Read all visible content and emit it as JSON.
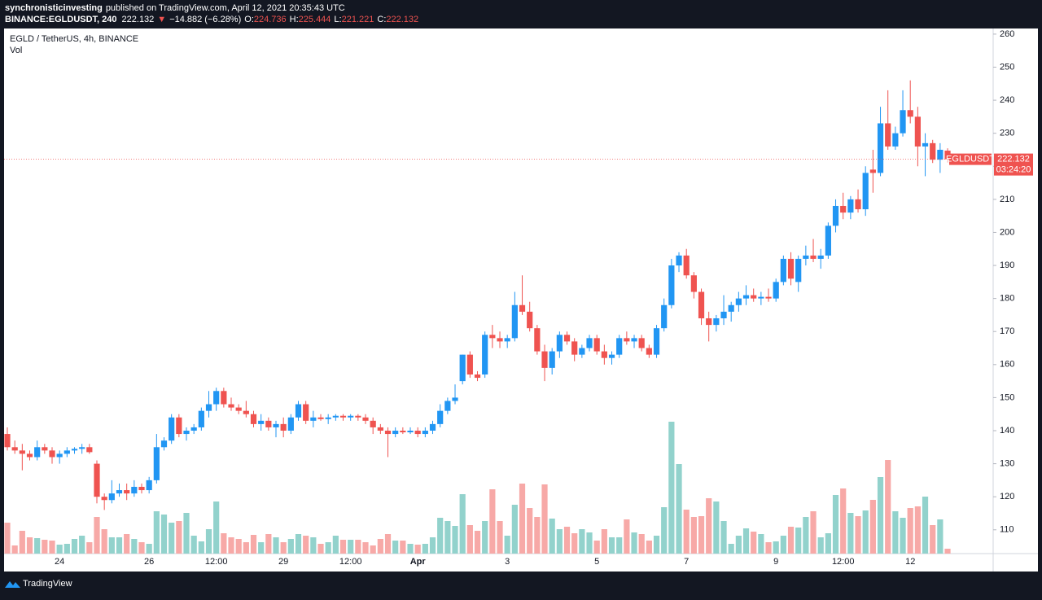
{
  "header": {
    "author": "synchronisticinvesting",
    "published": "published on TradingView.com, April 12, 2021 20:35:43 UTC",
    "symbol": "BINANCE:EGLDUSDT, 240",
    "price": "222.132",
    "arrow": "▼",
    "change": "−14.882 (−6.28%)",
    "ohlc": [
      {
        "label": "O:",
        "value": "224.736"
      },
      {
        "label": "H:",
        "value": "225.444"
      },
      {
        "label": "L:",
        "value": "221.221"
      },
      {
        "label": "C:",
        "value": "222.132"
      }
    ]
  },
  "footer": {
    "brand": "TradingView"
  },
  "chart_data": {
    "type": "candlestick",
    "title": "EGLD / TetherUS, 4h, BINANCE",
    "volume_label": "Vol",
    "symbol_label": "EGLDUSDT",
    "countdown": "03:24:20",
    "up_color": "#2196f3",
    "down_color": "#ef5350",
    "up_volume_color": "#92d2cc",
    "down_volume_color": "#f7a9a7",
    "ylim": [
      102.8,
      261.7
    ],
    "yticks": [
      110,
      120,
      130,
      140,
      150,
      160,
      170,
      180,
      190,
      200,
      210,
      220,
      230,
      240,
      250,
      260
    ],
    "volume_lim": [
      0,
      200
    ],
    "categories": [
      null,
      null,
      null,
      null,
      null,
      null,
      null,
      "24",
      null,
      null,
      null,
      null,
      null,
      null,
      null,
      null,
      null,
      null,
      null,
      "26",
      null,
      null,
      null,
      null,
      null,
      null,
      null,
      null,
      "12:00",
      null,
      null,
      null,
      null,
      null,
      null,
      null,
      null,
      "29",
      null,
      null,
      null,
      null,
      null,
      null,
      null,
      null,
      "12:00",
      null,
      null,
      null,
      null,
      null,
      null,
      null,
      null,
      "Apr",
      null,
      null,
      null,
      null,
      null,
      null,
      null,
      null,
      null,
      null,
      null,
      "3",
      null,
      null,
      null,
      null,
      null,
      null,
      null,
      null,
      null,
      null,
      null,
      "5",
      null,
      null,
      null,
      null,
      null,
      null,
      null,
      null,
      null,
      null,
      null,
      "7",
      null,
      null,
      null,
      null,
      null,
      null,
      null,
      null,
      null,
      null,
      null,
      "9",
      null,
      null,
      null,
      null,
      null,
      null,
      null,
      null,
      "12:00",
      null,
      null,
      null,
      null,
      null,
      null,
      null,
      null,
      "12",
      null,
      null,
      null,
      null,
      null
    ],
    "candles": [
      [
        139,
        141,
        134,
        135
      ],
      [
        135,
        137,
        133,
        134
      ],
      [
        134,
        136,
        128,
        133
      ],
      [
        133,
        134,
        131,
        132
      ],
      [
        132,
        137,
        131,
        135
      ],
      [
        135,
        136,
        133,
        134
      ],
      [
        134,
        135,
        130,
        132
      ],
      [
        132,
        134,
        130,
        133
      ],
      [
        133,
        135,
        132,
        134
      ],
      [
        134,
        135,
        133,
        134.5
      ],
      [
        134.5,
        136,
        133,
        135
      ],
      [
        135,
        136,
        133,
        133.5
      ],
      [
        130,
        131,
        118,
        120
      ],
      [
        120,
        121,
        116,
        119
      ],
      [
        119,
        125,
        118,
        121
      ],
      [
        121,
        124,
        120,
        122
      ],
      [
        122,
        124,
        119,
        121
      ],
      [
        121,
        125,
        120,
        123
      ],
      [
        123,
        124,
        121,
        122
      ],
      [
        122,
        126,
        121,
        125
      ],
      [
        125,
        139,
        124,
        135
      ],
      [
        135,
        138,
        134,
        137
      ],
      [
        137,
        145,
        136,
        144
      ],
      [
        144,
        145,
        138,
        139
      ],
      [
        139,
        141,
        137,
        140
      ],
      [
        140,
        142,
        139,
        141
      ],
      [
        141,
        147,
        140,
        146
      ],
      [
        146,
        152,
        144,
        148
      ],
      [
        148,
        153,
        146,
        152
      ],
      [
        152,
        153,
        147,
        148
      ],
      [
        148,
        150,
        146,
        147
      ],
      [
        147,
        148,
        145,
        146
      ],
      [
        146,
        149,
        144,
        145
      ],
      [
        145,
        146,
        141,
        142
      ],
      [
        142,
        145,
        140,
        143
      ],
      [
        143,
        144,
        140,
        141
      ],
      [
        141,
        143,
        138,
        142
      ],
      [
        142,
        144,
        138,
        140
      ],
      [
        140,
        145,
        139,
        144
      ],
      [
        144,
        149,
        143,
        148
      ],
      [
        148,
        149,
        142,
        143
      ],
      [
        143,
        146,
        141,
        144
      ],
      [
        144,
        145,
        143,
        143.5
      ],
      [
        143.5,
        145,
        142,
        144
      ],
      [
        144,
        145,
        143,
        144.5
      ],
      [
        144.5,
        145,
        143,
        144
      ],
      [
        144,
        145,
        143,
        144.5
      ],
      [
        144.5,
        145,
        143,
        144
      ],
      [
        144,
        145,
        142,
        143
      ],
      [
        143,
        144,
        139,
        141
      ],
      [
        141,
        142,
        139,
        140
      ],
      [
        140,
        141,
        132,
        139
      ],
      [
        139,
        141,
        138,
        140
      ],
      [
        140,
        141,
        139,
        139.5
      ],
      [
        139.5,
        141,
        139,
        140
      ],
      [
        140,
        141,
        138,
        139
      ],
      [
        139,
        141,
        138,
        140
      ],
      [
        140,
        143,
        139,
        142
      ],
      [
        142,
        148,
        141,
        146
      ],
      [
        146,
        150,
        145,
        149
      ],
      [
        149,
        154,
        148,
        150
      ],
      [
        155,
        163,
        154,
        163
      ],
      [
        163,
        164,
        156,
        157
      ],
      [
        157,
        158,
        155,
        156
      ],
      [
        157,
        170,
        156,
        169
      ],
      [
        169,
        172,
        165,
        168
      ],
      [
        168,
        170,
        165,
        167
      ],
      [
        167,
        169,
        165,
        168
      ],
      [
        168,
        182,
        167,
        178
      ],
      [
        178,
        187,
        175,
        176
      ],
      [
        176,
        179,
        170,
        171
      ],
      [
        171,
        172,
        163,
        164
      ],
      [
        164,
        166,
        155,
        159
      ],
      [
        159,
        165,
        157,
        164
      ],
      [
        164,
        170,
        162,
        169
      ],
      [
        169,
        170,
        166,
        167
      ],
      [
        167,
        168,
        161,
        163
      ],
      [
        163,
        166,
        162,
        165
      ],
      [
        165,
        169,
        164,
        168
      ],
      [
        168,
        169,
        163,
        164
      ],
      [
        164,
        166,
        160,
        162
      ],
      [
        162,
        164,
        160,
        163
      ],
      [
        163,
        169,
        162,
        168
      ],
      [
        168,
        170,
        166,
        167
      ],
      [
        167,
        169,
        165,
        168
      ],
      [
        168,
        169,
        164,
        165
      ],
      [
        165,
        166,
        162,
        163
      ],
      [
        163,
        172,
        162,
        171
      ],
      [
        171,
        180,
        170,
        178
      ],
      [
        178,
        192,
        177,
        190
      ],
      [
        190,
        194,
        188,
        193
      ],
      [
        193,
        195,
        186,
        187
      ],
      [
        187,
        188,
        180,
        182
      ],
      [
        182,
        183,
        172,
        174
      ],
      [
        174,
        176,
        167,
        172
      ],
      [
        172,
        175,
        170,
        174
      ],
      [
        174,
        181,
        172,
        176
      ],
      [
        176,
        179,
        173,
        178
      ],
      [
        178,
        182,
        176,
        180
      ],
      [
        180,
        184,
        178,
        181
      ],
      [
        181,
        183,
        179,
        180
      ],
      [
        180,
        182,
        178,
        180.5
      ],
      [
        180.5,
        183,
        179,
        180
      ],
      [
        180,
        186,
        179,
        185
      ],
      [
        185,
        193,
        184,
        192
      ],
      [
        192,
        194,
        184,
        186
      ],
      [
        185,
        193,
        182,
        192
      ],
      [
        192,
        196,
        190,
        193
      ],
      [
        193,
        198,
        191,
        192
      ],
      [
        192,
        195,
        189,
        193
      ],
      [
        193,
        203,
        192,
        202
      ],
      [
        202,
        210,
        200,
        208
      ],
      [
        208,
        212,
        204,
        206
      ],
      [
        206,
        211,
        204,
        210
      ],
      [
        210,
        213,
        206,
        207
      ],
      [
        207,
        220,
        205,
        218
      ],
      [
        219,
        225,
        212,
        218
      ],
      [
        218,
        238,
        217,
        233
      ],
      [
        233,
        243,
        225,
        226
      ],
      [
        226,
        232,
        225,
        230
      ],
      [
        230,
        243,
        229,
        237
      ],
      [
        237,
        246,
        233,
        235
      ],
      [
        235,
        238,
        220,
        226
      ],
      [
        226,
        230,
        217,
        227
      ],
      [
        227,
        228,
        221,
        222
      ],
      [
        222,
        227,
        218,
        225
      ],
      [
        224.736,
        225.444,
        221.221,
        222.132
      ]
    ],
    "volume": [
      38,
      10,
      28,
      20,
      19,
      17,
      16,
      11,
      12,
      18,
      22,
      14,
      45,
      30,
      20,
      20,
      24,
      18,
      14,
      12,
      52,
      48,
      38,
      40,
      50,
      22,
      15,
      30,
      64,
      25,
      20,
      18,
      14,
      23,
      14,
      24,
      20,
      14,
      18,
      24,
      22,
      20,
      12,
      14,
      22,
      17,
      17,
      17,
      14,
      10,
      18,
      24,
      16,
      16,
      12,
      11,
      12,
      20,
      44,
      40,
      34,
      73,
      35,
      28,
      40,
      79,
      40,
      22,
      60,
      86,
      56,
      45,
      85,
      43,
      30,
      33,
      25,
      30,
      26,
      16,
      30,
      20,
      20,
      42,
      26,
      24,
      16,
      22,
      57,
      162,
      110,
      54,
      45,
      46,
      68,
      64,
      40,
      12,
      22,
      31,
      27,
      24,
      14,
      15,
      22,
      33,
      32,
      45,
      52,
      20,
      25,
      72,
      80,
      50,
      46,
      53,
      66,
      94,
      115,
      52,
      44,
      56,
      58,
      70,
      35,
      42,
      6
    ]
  }
}
